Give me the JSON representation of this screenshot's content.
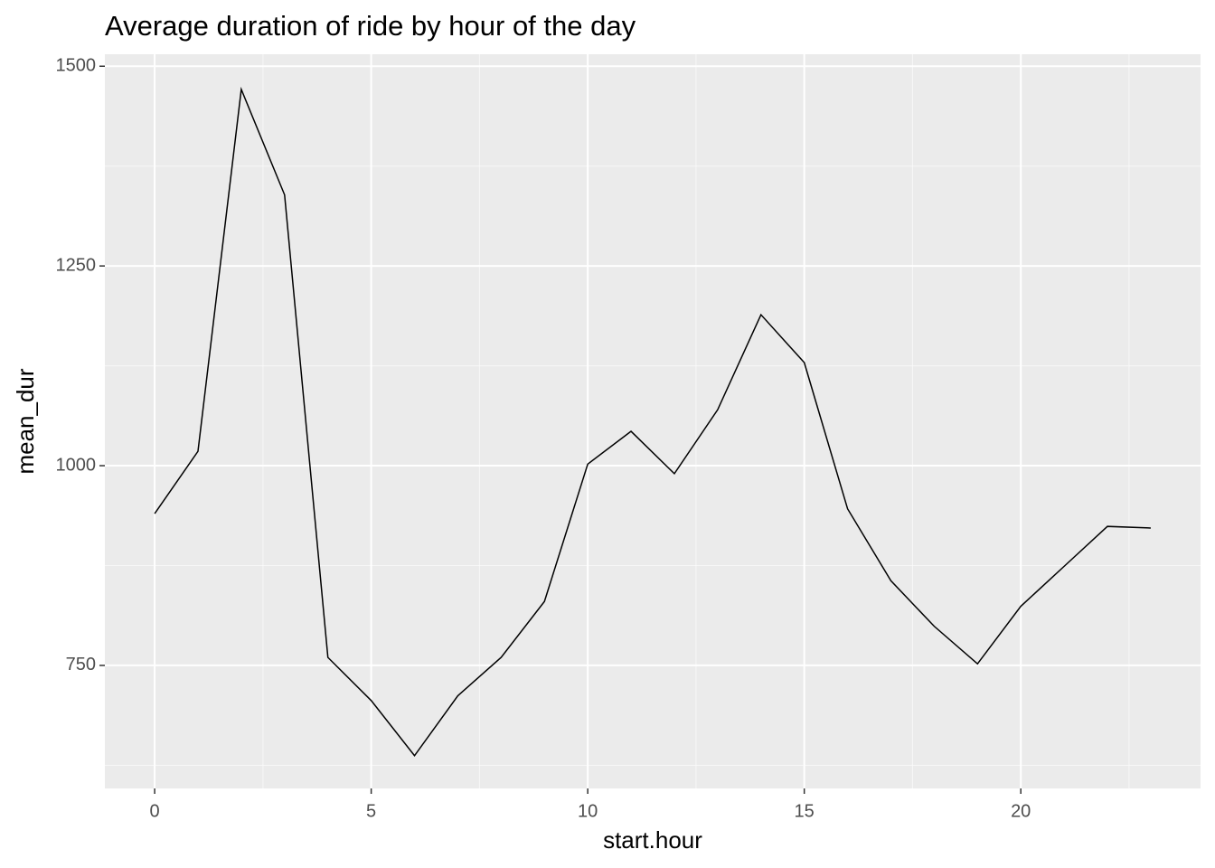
{
  "chart_data": {
    "type": "line",
    "title": "Average duration of ride by hour of the day",
    "x_label": "start.hour",
    "y_label": "mean_dur",
    "x": [
      0,
      1,
      2,
      3,
      4,
      5,
      6,
      7,
      8,
      9,
      10,
      11,
      12,
      13,
      14,
      15,
      16,
      17,
      18,
      19,
      20,
      21,
      22,
      23
    ],
    "series": [
      {
        "name": "mean_dur",
        "color": "#000000",
        "values": [
          940,
          1018,
          1471,
          1339,
          760,
          706,
          637,
          712,
          760,
          830,
          1002,
          1043,
          990,
          1070,
          1189,
          1129,
          946,
          856,
          799,
          752,
          824,
          874,
          924,
          922
        ]
      }
    ],
    "xlim": [
      -1.15,
      24.15
    ],
    "xticks": [
      0,
      5,
      10,
      15,
      20
    ],
    "ylim": [
      596,
      1515
    ],
    "yticks": [
      750,
      1000,
      1250,
      1500
    ],
    "grid": true,
    "panel_color": "#ebebeb",
    "grid_color": "#ffffff"
  }
}
